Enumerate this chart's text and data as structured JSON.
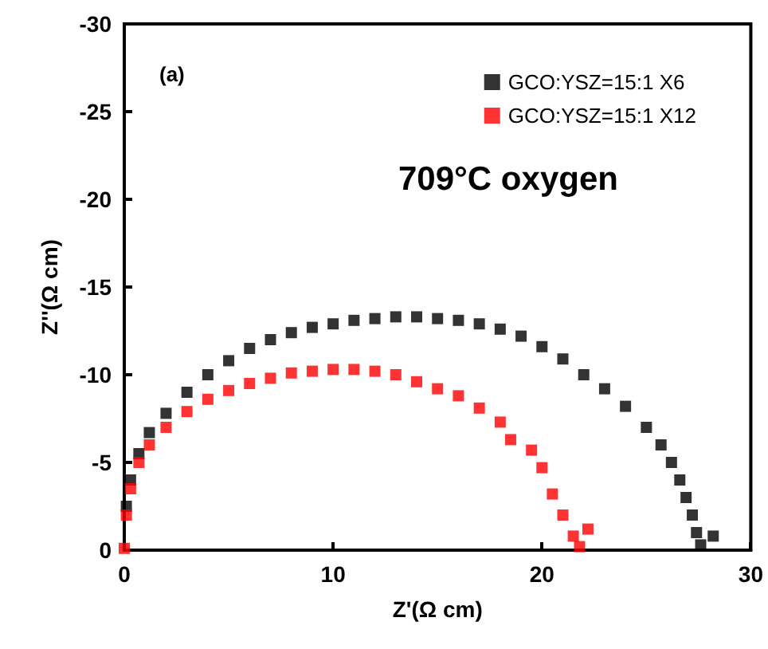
{
  "chart_data": {
    "type": "scatter",
    "xlabel": "Z'(Ω cm)",
    "ylabel": "Z''(Ω cm)",
    "xlim": [
      0,
      30
    ],
    "xticks": [
      0,
      10,
      20,
      30
    ],
    "ylim": [
      0,
      -30
    ],
    "yticks": [
      0,
      -5,
      -10,
      -15,
      -20,
      -25,
      -30
    ],
    "grid": false,
    "legend": "top right",
    "marker": "square",
    "annotations": [
      "(a)",
      "709°C oxygen"
    ],
    "series": [
      {
        "name": "GCO:YSZ=15:1 X6",
        "color": "#000000",
        "x": [
          0.1,
          0.3,
          0.7,
          1.2,
          2,
          3,
          4,
          5,
          6,
          7,
          8,
          9,
          10,
          11,
          12,
          13,
          14,
          15,
          16,
          17,
          18,
          19,
          20,
          21,
          22,
          23,
          24,
          25,
          25.7,
          26.2,
          26.6,
          26.9,
          27.2,
          27.4,
          27.6,
          28.2
        ],
        "values": [
          -2.5,
          -4,
          -5.5,
          -6.7,
          -7.8,
          -9,
          -10,
          -10.8,
          -11.5,
          -12,
          -12.4,
          -12.7,
          -12.9,
          -13.1,
          -13.2,
          -13.3,
          -13.3,
          -13.2,
          -13.1,
          -12.9,
          -12.6,
          -12.2,
          -11.6,
          -10.9,
          -10,
          -9.2,
          -8.2,
          -7,
          -6,
          -5,
          -4,
          -3,
          -2,
          -1,
          -0.3,
          -0.8
        ]
      },
      {
        "name": "GCO:YSZ=15:1 X12",
        "color": "#ff0000",
        "x": [
          0,
          0.1,
          0.3,
          0.7,
          1.2,
          2,
          3,
          4,
          5,
          6,
          7,
          8,
          9,
          10,
          11,
          12,
          13,
          14,
          15,
          16,
          17,
          18,
          18.5,
          19.5,
          20,
          20.5,
          21,
          21.5,
          21.8,
          22.2
        ],
        "values": [
          -0.1,
          -2,
          -3.5,
          -5,
          -6,
          -7,
          -7.9,
          -8.6,
          -9.1,
          -9.5,
          -9.8,
          -10.1,
          -10.2,
          -10.3,
          -10.3,
          -10.2,
          -10,
          -9.6,
          -9.2,
          -8.8,
          -8.1,
          -7.3,
          -6.3,
          -5.7,
          -4.7,
          -3.2,
          -2,
          -0.8,
          -0.2,
          -1.2
        ]
      }
    ]
  }
}
